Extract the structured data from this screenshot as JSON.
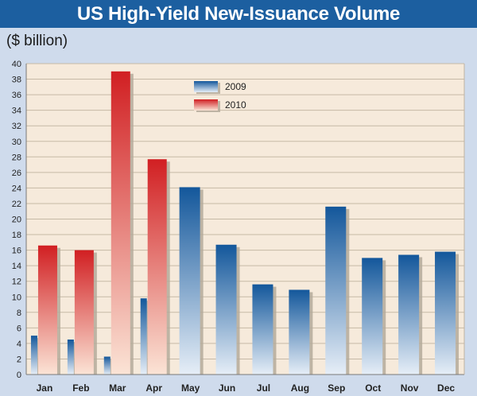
{
  "title": "US High-Yield New-Issuance Volume",
  "unit_label": "($ billion)",
  "colors": {
    "title_bar": "#1c5fa0",
    "background": "#cfdbec",
    "plot_bg": "#f6eadb",
    "series_2009_dark": "#13579b",
    "series_2009_light": "#e6eef7",
    "series_2010_dark": "#d11f22",
    "series_2010_light": "#fbe4d6"
  },
  "chart_data": {
    "type": "bar",
    "categories": [
      "Jan",
      "Feb",
      "Mar",
      "Apr",
      "May",
      "Jun",
      "Jul",
      "Aug",
      "Sep",
      "Oct",
      "Nov",
      "Dec"
    ],
    "series": [
      {
        "name": "2009",
        "values": [
          5.0,
          4.5,
          2.3,
          9.8,
          24.1,
          16.7,
          11.6,
          10.9,
          21.6,
          15.0,
          15.4,
          15.8
        ]
      },
      {
        "name": "2010",
        "values": [
          16.6,
          16.0,
          39.0,
          27.7,
          null,
          null,
          null,
          null,
          null,
          null,
          null,
          null
        ]
      }
    ],
    "ylim": [
      0,
      40
    ],
    "yticks": [
      "0",
      "2",
      "4",
      "6",
      "8",
      "10",
      "12",
      "14",
      "16",
      "18",
      "20",
      "22",
      "24",
      "26",
      "28",
      "30",
      "32",
      "34",
      "36",
      "38",
      "40"
    ],
    "grid": true,
    "legend_position": "top-left"
  }
}
